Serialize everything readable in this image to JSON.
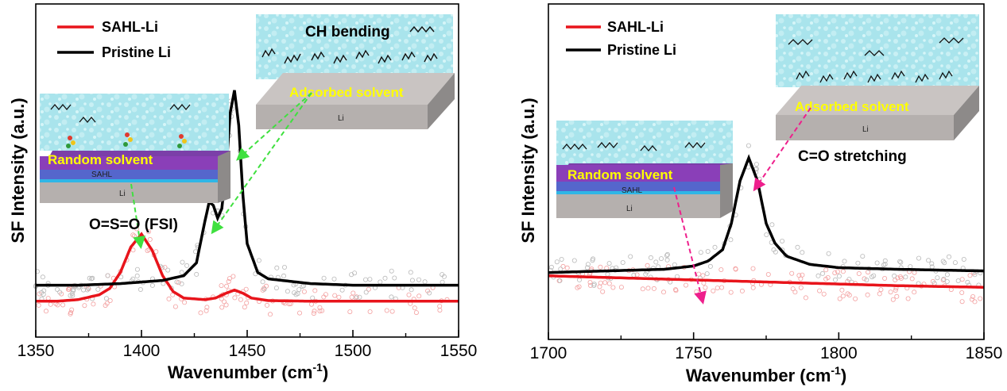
{
  "chart_data": [
    {
      "type": "line",
      "xlabel": "Wavenumber (cm",
      "xlabel_sup": "-1",
      "xlabel_end": ")",
      "ylabel": "SF Intensity (a.u.)",
      "xlim": [
        1350,
        1550
      ],
      "ylim": [
        0,
        1
      ],
      "xticks": [
        1350,
        1400,
        1450,
        1500,
        1550
      ],
      "tick_labels": [
        "1350",
        "1400",
        "1450",
        "1500",
        "1550"
      ],
      "legend_position": "top-left",
      "series": [
        {
          "name": "SAHL-Li",
          "color": "#e8141b",
          "x": [
            1350,
            1360,
            1370,
            1380,
            1385,
            1390,
            1395,
            1400,
            1405,
            1410,
            1415,
            1420,
            1430,
            1435,
            1440,
            1444,
            1448,
            1452,
            1460,
            1480,
            1500,
            1520,
            1550
          ],
          "y": [
            0.07,
            0.07,
            0.075,
            0.09,
            0.11,
            0.16,
            0.24,
            0.28,
            0.23,
            0.15,
            0.1,
            0.08,
            0.075,
            0.08,
            0.095,
            0.105,
            0.095,
            0.08,
            0.072,
            0.07,
            0.07,
            0.07,
            0.07
          ]
        },
        {
          "name": "Pristine Li",
          "color": "#000000",
          "x": [
            1350,
            1370,
            1390,
            1400,
            1410,
            1420,
            1426,
            1430,
            1432,
            1434,
            1436,
            1438,
            1440,
            1442,
            1444,
            1446,
            1448,
            1450,
            1455,
            1460,
            1480,
            1500,
            1550
          ],
          "y": [
            0.12,
            0.12,
            0.125,
            0.13,
            0.135,
            0.15,
            0.19,
            0.32,
            0.38,
            0.37,
            0.33,
            0.36,
            0.48,
            0.66,
            0.73,
            0.62,
            0.4,
            0.25,
            0.16,
            0.14,
            0.125,
            0.12,
            0.12
          ]
        }
      ],
      "annotations": {
        "peak_label": "O=S=O (FSI)",
        "inset_top": {
          "title": "CH bending",
          "surface": "Adsorbed solvent",
          "substrate": "Li"
        },
        "inset_left": {
          "surface": "Random solvent",
          "layer": "SAHL",
          "substrate": "Li"
        }
      }
    },
    {
      "type": "line",
      "xlabel": "Wavenumber (cm",
      "xlabel_sup": "-1",
      "xlabel_end": ")",
      "ylabel": "SF Intensity (a.u.)",
      "xlim": [
        1700,
        1850
      ],
      "ylim": [
        0,
        1
      ],
      "xticks": [
        1700,
        1750,
        1800,
        1850
      ],
      "tick_labels": [
        "1700",
        "1750",
        "1800",
        "1850"
      ],
      "legend_position": "top-left",
      "series": [
        {
          "name": "SAHL-Li",
          "color": "#e8141b",
          "x": [
            1700,
            1720,
            1740,
            1760,
            1780,
            1800,
            1820,
            1850
          ],
          "y": [
            0.17,
            0.165,
            0.16,
            0.155,
            0.15,
            0.145,
            0.14,
            0.135
          ]
        },
        {
          "name": "Pristine Li",
          "color": "#000000",
          "x": [
            1700,
            1720,
            1740,
            1750,
            1755,
            1760,
            1763,
            1766,
            1769,
            1772,
            1775,
            1778,
            1782,
            1790,
            1800,
            1820,
            1850
          ],
          "y": [
            0.18,
            0.185,
            0.19,
            0.2,
            0.215,
            0.25,
            0.33,
            0.46,
            0.53,
            0.46,
            0.33,
            0.27,
            0.23,
            0.205,
            0.195,
            0.19,
            0.185
          ]
        }
      ],
      "annotations": {
        "peak_label": "C=O stretching",
        "inset_top": {
          "surface": "Adsorbed solvent",
          "substrate": "Li"
        },
        "inset_left": {
          "surface": "Random solvent",
          "layer": "SAHL",
          "substrate": "Li"
        }
      }
    }
  ]
}
